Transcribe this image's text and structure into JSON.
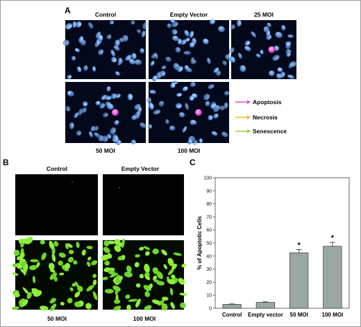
{
  "panel_a": {
    "letter": "A",
    "image_labels": [
      "Control",
      "Empty Vector",
      "25 MOI",
      "50 MOI",
      "100 MOI"
    ],
    "legend": [
      {
        "label": "Apoptosis",
        "color": "#e04cd0"
      },
      {
        "label": "Necrosis",
        "color": "#f2b61f"
      },
      {
        "label": "Senescence",
        "color": "#8fd63a"
      }
    ]
  },
  "panel_b": {
    "letter": "B",
    "image_labels": [
      "Control",
      "Empty Vector",
      "50 MOI",
      "100 MOI"
    ]
  },
  "panel_c": {
    "letter": "C"
  },
  "chart_data": {
    "type": "bar",
    "categories": [
      "Control",
      "Empty vector",
      "50 MOI",
      "100 MOI"
    ],
    "values": [
      3,
      4.5,
      42.5,
      47.5
    ],
    "error": [
      0.3,
      0.4,
      2.5,
      3
    ],
    "significance": [
      "",
      "",
      "*",
      "*"
    ],
    "ylabel": "% of Apoptotic Cells",
    "ylim": [
      0,
      100
    ],
    "yticks": [
      0,
      10,
      20,
      30,
      40,
      50,
      60,
      70,
      80,
      90,
      100
    ],
    "bar_color": "#9aa8a4",
    "grid": false
  }
}
